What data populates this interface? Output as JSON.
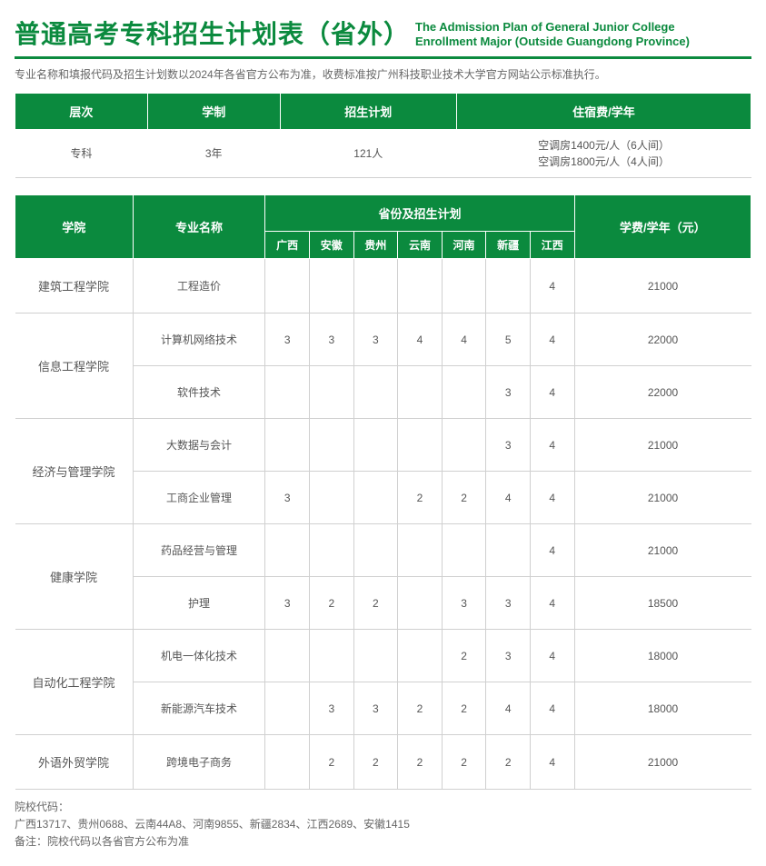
{
  "title_cn": "普通高考专科招生计划表（省外）",
  "title_en_line1": "The Admission Plan of General Junior College",
  "title_en_line2": "Enrollment Major (Outside Guangdong Province)",
  "subnote": "专业名称和填报代码及招生计划数以2024年各省官方公布为准，收费标准按广州科技职业技术大学官方网站公示标准执行。",
  "summary_headers": {
    "level": "层次",
    "duration": "学制",
    "plan": "招生计划",
    "dorm": "住宿费/学年"
  },
  "summary_values": {
    "level": "专科",
    "duration": "3年",
    "plan": "121人",
    "dorm_line1": "空调房1400元/人（6人间）",
    "dorm_line2": "空调房1800元/人（4人间）"
  },
  "main_headers": {
    "college": "学院",
    "major": "专业名称",
    "plan_group": "省份及招生计划",
    "tuition": "学费/学年（元）"
  },
  "provinces": [
    "广西",
    "安徽",
    "贵州",
    "云南",
    "河南",
    "新疆",
    "江西"
  ],
  "rows": [
    {
      "college": "建筑工程学院",
      "rowspan": 1,
      "major": "工程造价",
      "cells": [
        "",
        "",
        "",
        "",
        "",
        "",
        "4"
      ],
      "tuition": "21000"
    },
    {
      "college": "信息工程学院",
      "rowspan": 2,
      "major": "计算机网络技术",
      "cells": [
        "3",
        "3",
        "3",
        "4",
        "4",
        "5",
        "4"
      ],
      "tuition": "22000"
    },
    {
      "major": "软件技术",
      "cells": [
        "",
        "",
        "",
        "",
        "",
        "3",
        "4"
      ],
      "tuition": "22000"
    },
    {
      "college": "经济与管理学院",
      "rowspan": 2,
      "major": "大数据与会计",
      "cells": [
        "",
        "",
        "",
        "",
        "",
        "3",
        "4"
      ],
      "tuition": "21000"
    },
    {
      "major": "工商企业管理",
      "cells": [
        "3",
        "",
        "",
        "2",
        "2",
        "4",
        "4"
      ],
      "tuition": "21000"
    },
    {
      "college": "健康学院",
      "rowspan": 2,
      "major": "药品经营与管理",
      "cells": [
        "",
        "",
        "",
        "",
        "",
        "",
        "4"
      ],
      "tuition": "21000"
    },
    {
      "major": "护理",
      "cells": [
        "3",
        "2",
        "2",
        "",
        "3",
        "3",
        "4"
      ],
      "tuition": "18500"
    },
    {
      "college": "自动化工程学院",
      "rowspan": 2,
      "major": "机电一体化技术",
      "cells": [
        "",
        "",
        "",
        "",
        "2",
        "3",
        "4"
      ],
      "tuition": "18000"
    },
    {
      "major": "新能源汽车技术",
      "cells": [
        "",
        "3",
        "3",
        "2",
        "2",
        "4",
        "4"
      ],
      "tuition": "18000"
    },
    {
      "college": "外语外贸学院",
      "rowspan": 1,
      "major": "跨境电子商务",
      "cells": [
        "",
        "2",
        "2",
        "2",
        "2",
        "2",
        "4"
      ],
      "tuition": "21000"
    }
  ],
  "footnote_label": "院校代码：",
  "footnote_codes": "广西13717、贵州0688、云南44A8、河南9855、新疆2834、江西2689、安徽1415",
  "footnote_note": "备注：院校代码以各省官方公布为准",
  "colors": {
    "accent": "#0b8a3e",
    "row_border": "#d0d0d0",
    "text_muted": "#666666"
  }
}
